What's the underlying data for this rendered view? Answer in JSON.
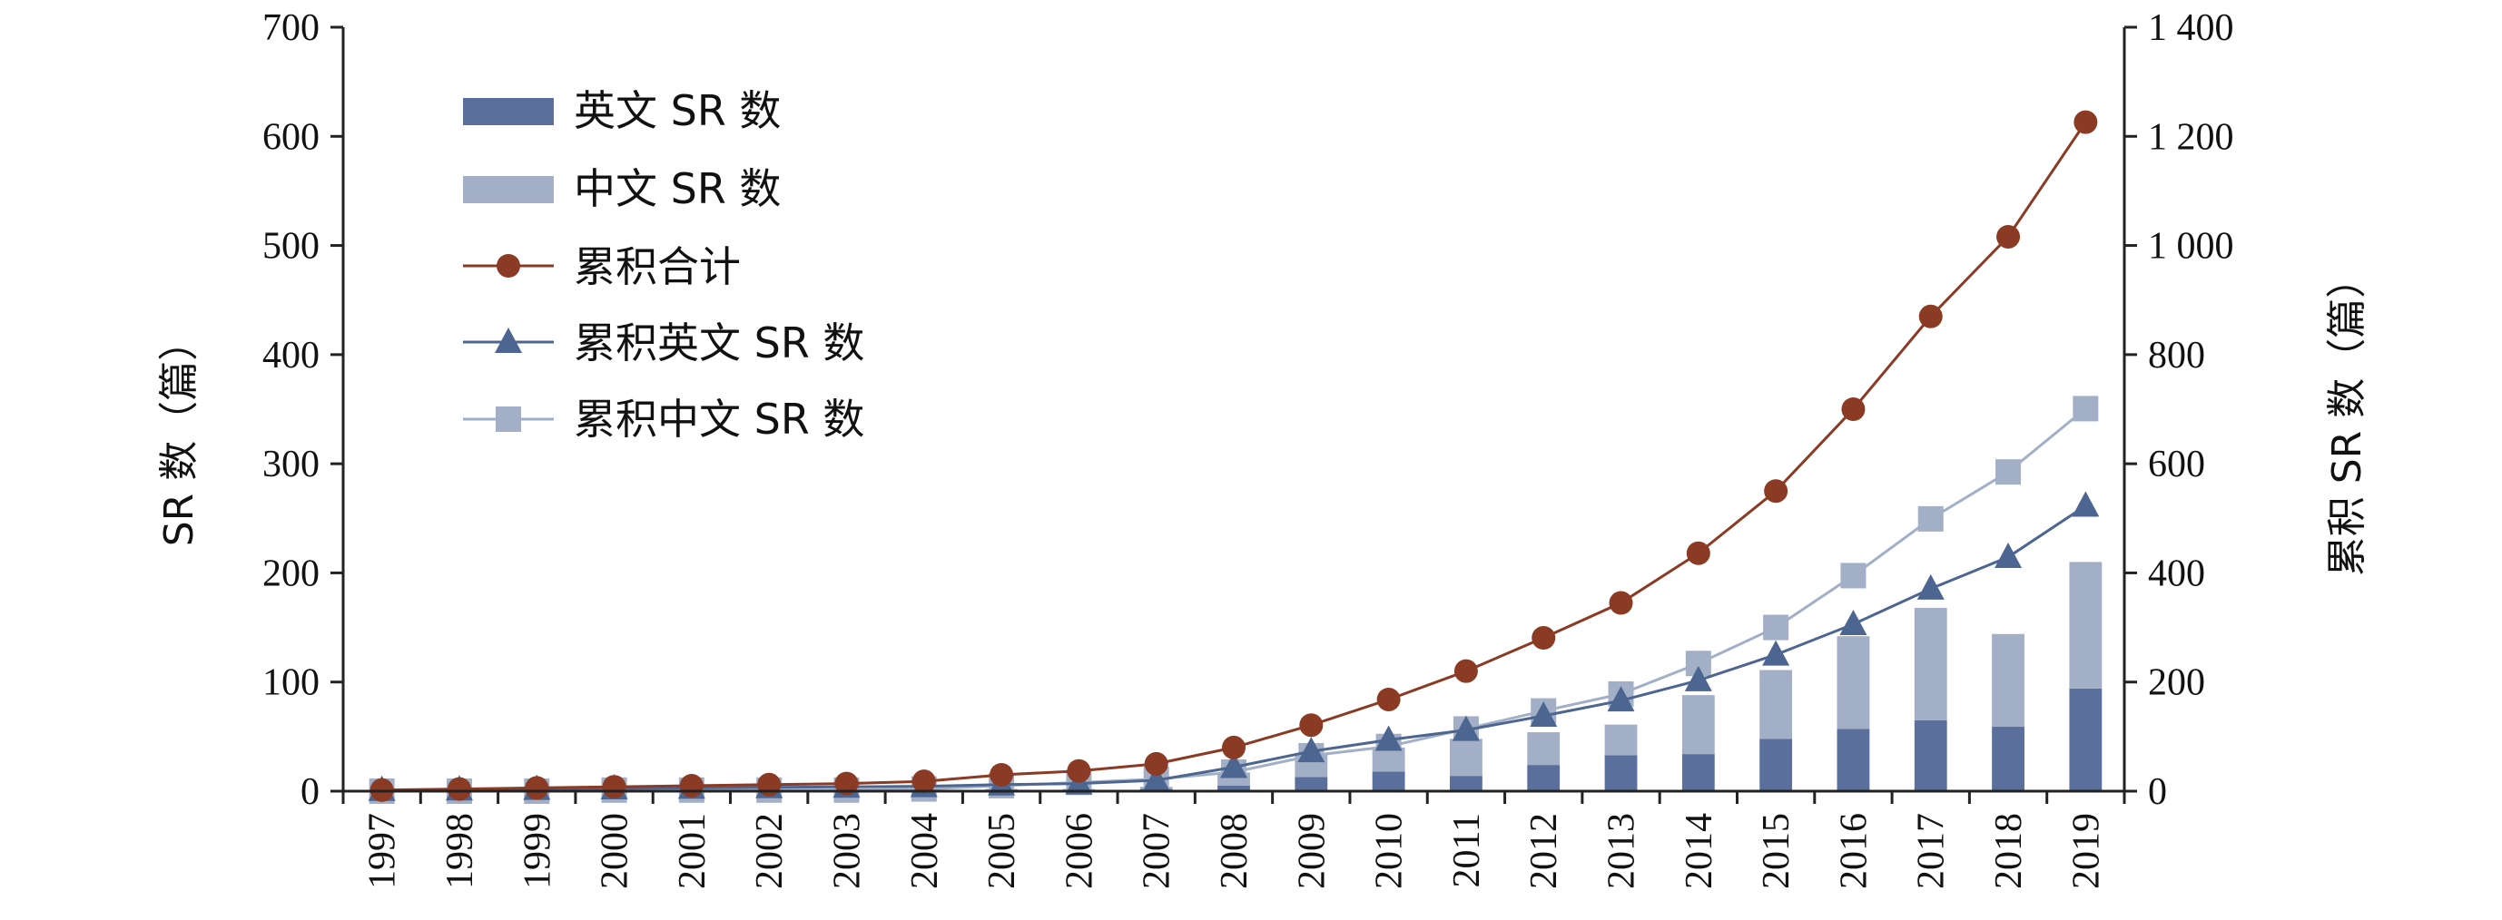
{
  "chart_data": {
    "type": "bar",
    "categories": [
      "1997",
      "1998",
      "1999",
      "2000",
      "2001",
      "2002",
      "2003",
      "2004",
      "2005",
      "2006",
      "2007",
      "2008",
      "2009",
      "2010",
      "2011",
      "2012",
      "2013",
      "2014",
      "2015",
      "2016",
      "2017",
      "2018",
      "2019"
    ],
    "bar_stacked": true,
    "series": [
      {
        "name": "英文 SR 数",
        "kind": "bar",
        "axis": "left",
        "color": "#5a6f9b",
        "values": [
          0,
          0,
          0,
          0,
          0,
          0,
          0,
          0,
          1,
          1,
          2,
          5,
          13,
          18,
          14,
          24,
          33,
          34,
          48,
          57,
          65,
          59,
          94
        ]
      },
      {
        "name": "中文 SR 数",
        "kind": "bar",
        "axis": "left",
        "color": "#a2afc6",
        "values": [
          0,
          0,
          0,
          0,
          0,
          0,
          0,
          0,
          1,
          1,
          2,
          12,
          22,
          22,
          34,
          30,
          28,
          54,
          63,
          85,
          103,
          85,
          116
        ]
      },
      {
        "name": "累积合计",
        "kind": "line",
        "marker": "circle",
        "axis": "right",
        "color": "#8b3a24",
        "values": [
          2,
          4,
          6,
          8,
          10,
          12,
          14,
          18,
          30,
          37,
          50,
          80,
          121,
          168,
          220,
          281,
          345,
          436,
          550,
          700,
          870,
          1016,
          1226
        ]
      },
      {
        "name": "累积英文 SR 数",
        "kind": "line",
        "marker": "triangle",
        "axis": "right",
        "color": "#4d6591",
        "values": [
          2,
          3,
          4,
          5,
          6,
          7,
          8,
          9,
          12,
          14,
          20,
          44,
          73,
          94,
          112,
          138,
          166,
          203,
          250,
          306,
          371,
          429,
          523
        ]
      },
      {
        "name": "累积中文 SR 数",
        "kind": "line",
        "marker": "square",
        "axis": "right",
        "color": "#a2afc6",
        "values": [
          0,
          0,
          0,
          2,
          2,
          2,
          2,
          4,
          10,
          16,
          22,
          35,
          65,
          82,
          114,
          147,
          178,
          234,
          300,
          395,
          499,
          585,
          701
        ]
      }
    ],
    "ylabel_left": "SR 数（篇）",
    "ylabel_right": "累积 SR 数（篇）",
    "ylim_left": [
      0,
      700
    ],
    "ylim_right": [
      0,
      1400
    ],
    "yticks_left": [
      "0",
      "100",
      "200",
      "300",
      "400",
      "500",
      "600",
      "700"
    ],
    "yticks_right": [
      "0",
      "200",
      "400",
      "600",
      "800",
      "1 000",
      "1 200",
      "1 400"
    ],
    "legend_position": "top-left",
    "grid": false
  }
}
